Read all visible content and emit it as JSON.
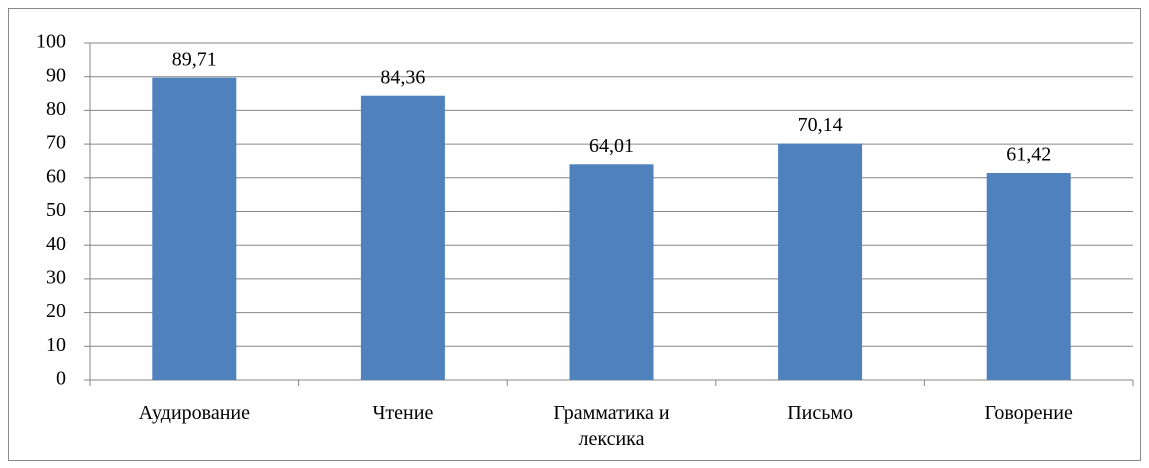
{
  "chart_data": {
    "type": "bar",
    "categories": [
      "Аудирование",
      "Чтение",
      "Грамматика и лексика",
      "Письмо",
      "Говорение"
    ],
    "values": [
      89.71,
      84.36,
      64.01,
      70.14,
      61.42
    ],
    "value_labels": [
      "89,71",
      "84,36",
      "64,01",
      "70,14",
      "61,42"
    ],
    "color": "#4f81bd",
    "ylim": [
      0,
      100
    ],
    "yticks": [
      0,
      10,
      20,
      30,
      40,
      50,
      60,
      70,
      80,
      90,
      100
    ],
    "grid": true
  }
}
